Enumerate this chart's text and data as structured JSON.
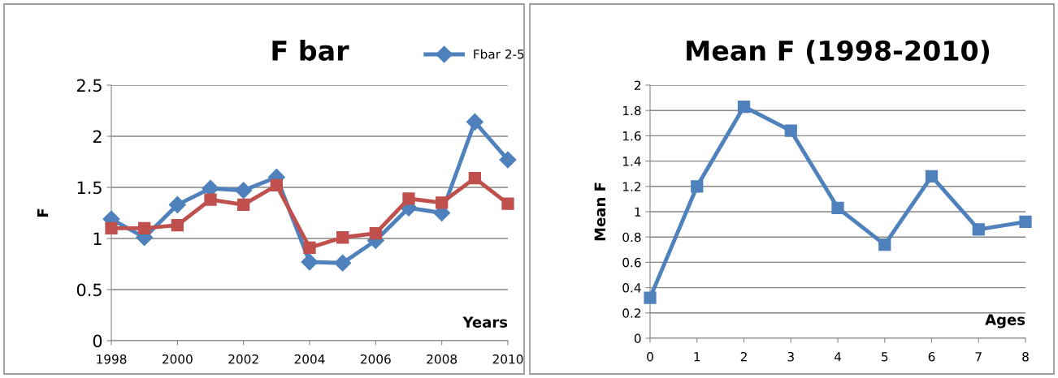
{
  "chart_data": [
    {
      "type": "line",
      "title": "F bar",
      "xlabel": "Years",
      "ylabel": "F",
      "x": [
        1998,
        1999,
        2000,
        2001,
        2002,
        2003,
        2004,
        2005,
        2006,
        2007,
        2008,
        2009,
        2010
      ],
      "series": [
        {
          "name": "Fbar 2-5",
          "color": "#4f81bd",
          "marker": "diamond",
          "values": [
            1.19,
            1.01,
            1.33,
            1.49,
            1.47,
            1.6,
            0.77,
            0.76,
            0.98,
            1.3,
            1.25,
            2.14,
            1.77
          ]
        },
        {
          "color": "#c0504d",
          "marker": "square",
          "values": [
            1.1,
            1.1,
            1.13,
            1.38,
            1.33,
            1.52,
            0.91,
            1.01,
            1.05,
            1.39,
            1.35,
            1.59,
            1.34
          ]
        }
      ],
      "xlim": [
        1998,
        2010
      ],
      "xticks": [
        1998,
        2000,
        2002,
        2004,
        2006,
        2008,
        2010
      ],
      "ylim": [
        0,
        2.5
      ],
      "yticks": [
        0,
        0.5,
        1,
        1.5,
        2,
        2.5
      ],
      "grid": "y",
      "legend": "top right"
    },
    {
      "type": "line",
      "title": "Mean F (1998-2010)",
      "xlabel": "Ages",
      "ylabel": "Mean F",
      "x": [
        0,
        1,
        2,
        3,
        4,
        5,
        6,
        7,
        8
      ],
      "series": [
        {
          "color": "#4f81bd",
          "marker": "square",
          "values": [
            0.32,
            1.2,
            1.83,
            1.64,
            1.03,
            0.74,
            1.28,
            0.86,
            0.92
          ]
        }
      ],
      "xlim": [
        0,
        8
      ],
      "xticks": [
        0,
        1,
        2,
        3,
        4,
        5,
        6,
        7,
        8
      ],
      "ylim": [
        0,
        2
      ],
      "yticks": [
        0,
        0.2,
        0.4,
        0.6,
        0.8,
        1,
        1.2,
        1.4,
        1.6,
        1.8,
        2
      ],
      "grid": "y",
      "legend": false
    }
  ]
}
